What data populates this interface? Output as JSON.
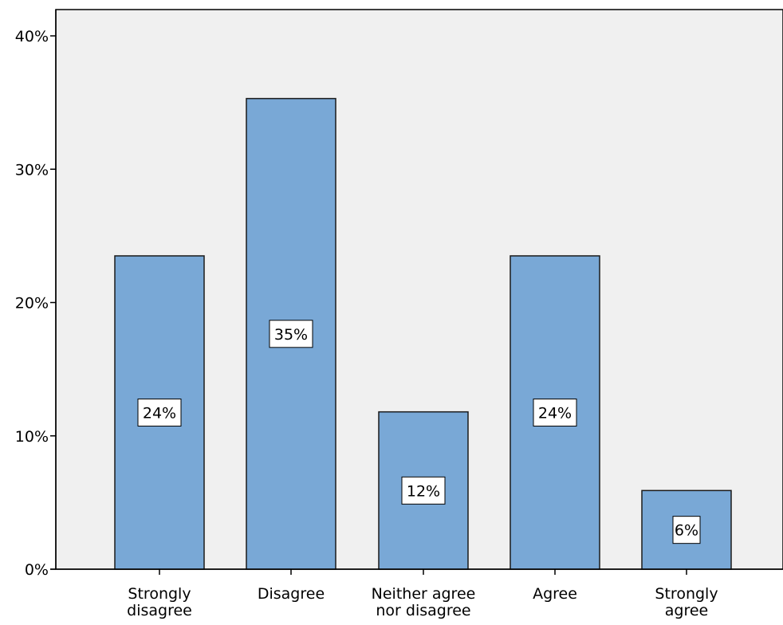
{
  "chart_data": {
    "type": "bar",
    "categories": [
      "Strongly disagree",
      "Disagree",
      "Neither agree nor disagree",
      "Agree",
      "Strongly agree"
    ],
    "category_label_lines": [
      [
        "Strongly",
        "disagree"
      ],
      [
        "Disagree"
      ],
      [
        "Neither agree",
        "nor disagree"
      ],
      [
        "Agree"
      ],
      [
        "Strongly",
        "agree"
      ]
    ],
    "values": [
      23.5,
      35.3,
      11.8,
      23.5,
      5.9
    ],
    "data_labels": [
      "24%",
      "35%",
      "12%",
      "24%",
      "6%"
    ],
    "y_ticks": [
      0,
      10,
      20,
      30,
      40
    ],
    "y_tick_labels": [
      "0%",
      "10%",
      "20%",
      "30%",
      "40%"
    ],
    "ylim": [
      0,
      42
    ],
    "title": "",
    "xlabel": "",
    "ylabel": "",
    "grid": false,
    "legend": "none",
    "colors": {
      "bar_fill": "#79a8d6",
      "bar_stroke": "#1a1a1a",
      "plot_background": "#f0f0f0",
      "axis": "#000000",
      "label_box_fill": "#ffffff",
      "text": "#000000"
    }
  }
}
